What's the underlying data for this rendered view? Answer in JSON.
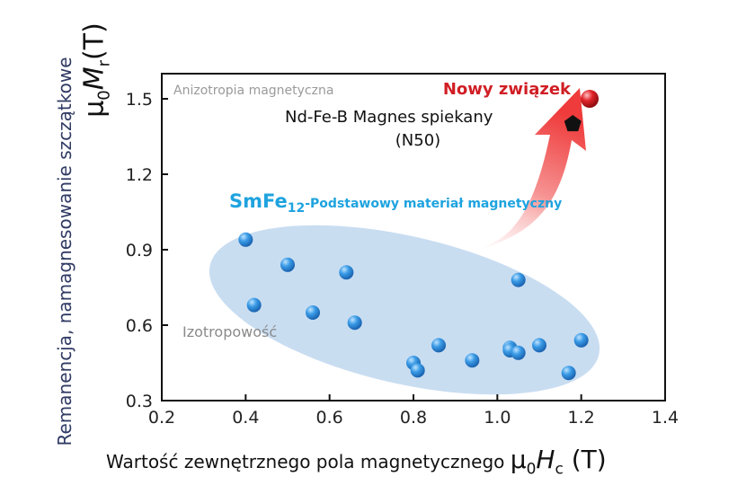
{
  "chart_data": {
    "type": "scatter",
    "xlabel": "Wartość zewnętrznego pola magnetycznego",
    "xunit": {
      "sym": "μ",
      "sub0": "0",
      "var": "H",
      "subvar": "c",
      "unit": "(T)"
    },
    "ylabel": "Remanencja, namagnesowanie szczątkowe",
    "yunit": {
      "sym": "μ",
      "sub0": "0",
      "var": "M",
      "subvar": "r",
      "unit": "(T)"
    },
    "xlim": [
      0.2,
      1.4
    ],
    "ylim": [
      0.3,
      1.6
    ],
    "xticks": [
      "0.2",
      "0.4",
      "0.6",
      "0.8",
      "1.0",
      "1.2",
      "1.4"
    ],
    "yticks": [
      "0.3",
      "0.6",
      "0.9",
      "1.2",
      "1.5"
    ],
    "grid": false,
    "series": [
      {
        "name": "SmFe12",
        "color": "#2f8fde",
        "points": [
          {
            "x": 0.4,
            "y": 0.94
          },
          {
            "x": 0.42,
            "y": 0.68
          },
          {
            "x": 0.5,
            "y": 0.84
          },
          {
            "x": 0.56,
            "y": 0.65
          },
          {
            "x": 0.64,
            "y": 0.81
          },
          {
            "x": 0.66,
            "y": 0.61
          },
          {
            "x": 0.8,
            "y": 0.45
          },
          {
            "x": 0.81,
            "y": 0.42
          },
          {
            "x": 0.86,
            "y": 0.52
          },
          {
            "x": 0.94,
            "y": 0.46
          },
          {
            "x": 1.03,
            "y": 0.51
          },
          {
            "x": 1.03,
            "y": 0.5
          },
          {
            "x": 1.05,
            "y": 0.49
          },
          {
            "x": 1.05,
            "y": 0.78
          },
          {
            "x": 1.1,
            "y": 0.52
          },
          {
            "x": 1.17,
            "y": 0.41
          },
          {
            "x": 1.2,
            "y": 0.54
          }
        ]
      },
      {
        "name": "Nd-Fe-B",
        "color": "#111111",
        "points": [
          {
            "x": 1.18,
            "y": 1.4
          }
        ]
      },
      {
        "name": "Nowy związek",
        "color": "#d01e24",
        "points": [
          {
            "x": 1.22,
            "y": 1.5
          }
        ]
      }
    ],
    "annotations": {
      "anisotropy": "Anizotropia magnetyczna",
      "new_compound": "Nowy związek",
      "ndfeb_line1": "Nd-Fe-B Magnes spiekany",
      "ndfeb_line2": "(N50)",
      "smfe_formula": "SmFe",
      "smfe_sub": "12",
      "smfe_desc": "-Podstawowy materiał magnetyczny",
      "isotropy": "Izotropowość"
    },
    "colors": {
      "ellipse": "#c9ddf1",
      "arrow": "#ef3b3b",
      "smfe_label": "#1ea3df",
      "new_label": "#d01e24",
      "muted_text": "#9a9a9a"
    }
  }
}
